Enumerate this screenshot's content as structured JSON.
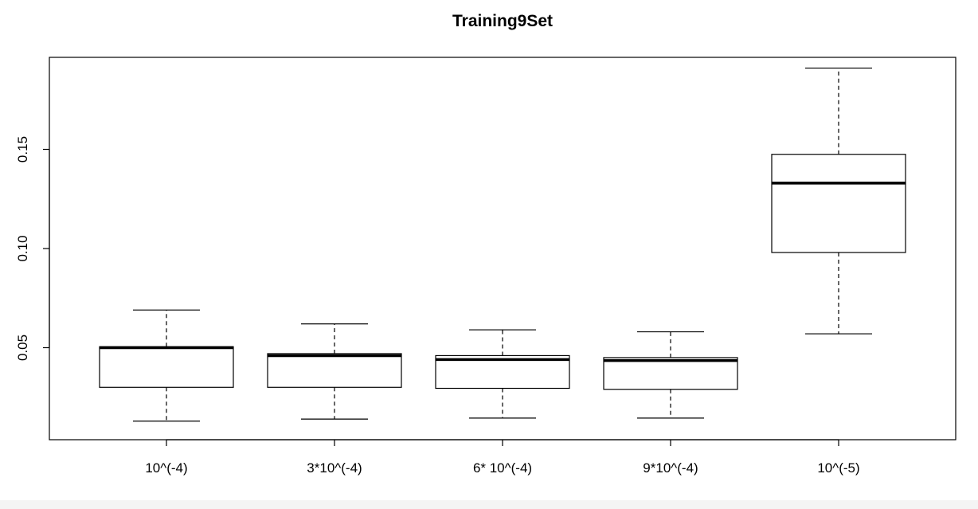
{
  "chart_data": {
    "type": "boxplot",
    "title": "Training9Set",
    "xlabel": "",
    "ylabel": "",
    "categories": [
      "10^(-4)",
      "3*10^(-4)",
      "6* 10^(-4)",
      "9*10^(-4)",
      "10^(-5)"
    ],
    "boxes": [
      {
        "label": "10^(-4)",
        "whisker_low": 0.013,
        "q1": 0.03,
        "median": 0.05,
        "q3": 0.0505,
        "whisker_high": 0.069
      },
      {
        "label": "3*10^(-4)",
        "whisker_low": 0.014,
        "q1": 0.03,
        "median": 0.046,
        "q3": 0.047,
        "whisker_high": 0.062
      },
      {
        "label": "6* 10^(-4)",
        "whisker_low": 0.0145,
        "q1": 0.0295,
        "median": 0.044,
        "q3": 0.046,
        "whisker_high": 0.059
      },
      {
        "label": "9*10^(-4)",
        "whisker_low": 0.0145,
        "q1": 0.029,
        "median": 0.0435,
        "q3": 0.045,
        "whisker_high": 0.058
      },
      {
        "label": "10^(-5)",
        "whisker_low": 0.057,
        "q1": 0.098,
        "median": 0.133,
        "q3": 0.1475,
        "whisker_high": 0.191
      }
    ],
    "y_ticks": [
      0.05,
      0.1,
      0.15
    ],
    "y_tick_labels": [
      "0.05",
      "0.10",
      "0.15"
    ],
    "ylim": [
      0.0036,
      0.1964
    ],
    "grid": false,
    "legend": "none",
    "colors": {
      "box_fill": "#ffffff",
      "stroke": "#000000"
    }
  }
}
